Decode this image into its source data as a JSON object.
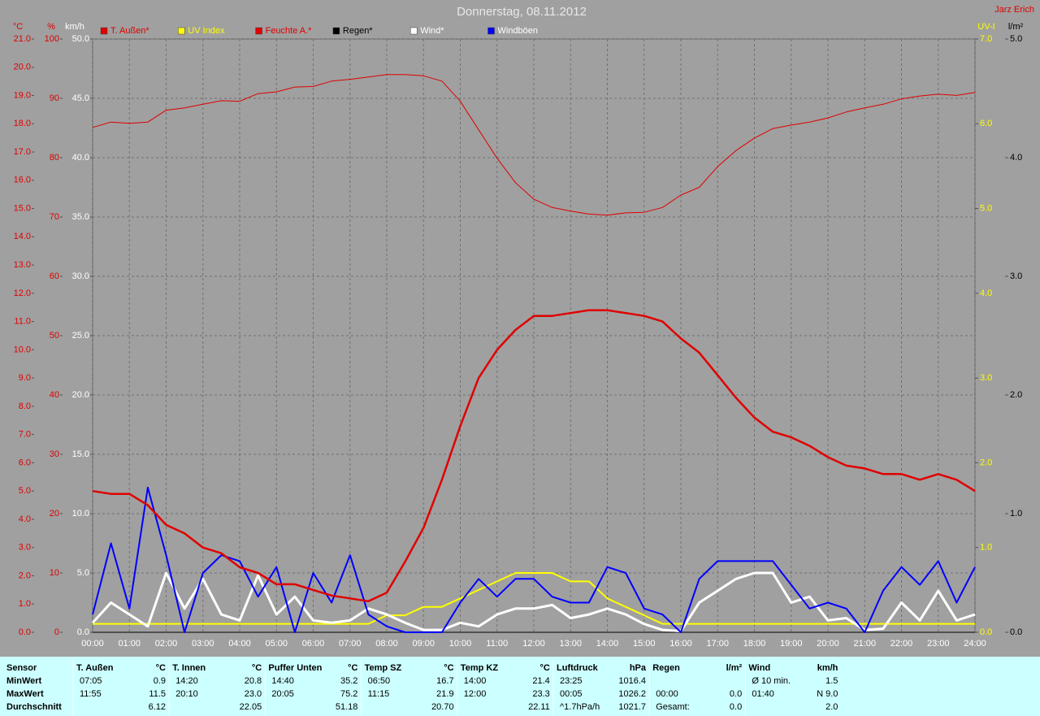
{
  "chart_data": {
    "type": "line",
    "title": "Donnerstag, 08.11.2012",
    "author": "Jarz Erich",
    "x": [
      0,
      0.5,
      1,
      1.5,
      2,
      2.5,
      3,
      3.5,
      4,
      4.5,
      5,
      5.5,
      6,
      6.5,
      7,
      7.5,
      8,
      8.5,
      9,
      9.5,
      10,
      10.5,
      11,
      11.5,
      12,
      12.5,
      13,
      13.5,
      14,
      14.5,
      15,
      15.5,
      16,
      16.5,
      17,
      17.5,
      18,
      18.5,
      19,
      19.5,
      20,
      20.5,
      21,
      21.5,
      22,
      22.5,
      23,
      23.5,
      24
    ],
    "xlim": [
      0,
      24
    ],
    "xticks": [
      {
        "value": 0,
        "label": "00:00"
      },
      {
        "value": 1,
        "label": "01:00"
      },
      {
        "value": 2,
        "label": "02:00"
      },
      {
        "value": 3,
        "label": "03:00"
      },
      {
        "value": 4,
        "label": "04:00"
      },
      {
        "value": 5,
        "label": "05:00"
      },
      {
        "value": 6,
        "label": "06:00"
      },
      {
        "value": 7,
        "label": "07:00"
      },
      {
        "value": 8,
        "label": "08:00"
      },
      {
        "value": 9,
        "label": "09:00"
      },
      {
        "value": 10,
        "label": "10:00"
      },
      {
        "value": 11,
        "label": "11:00"
      },
      {
        "value": 12,
        "label": "12:00"
      },
      {
        "value": 13,
        "label": "13:00"
      },
      {
        "value": 14,
        "label": "14:00"
      },
      {
        "value": 15,
        "label": "15:00"
      },
      {
        "value": 16,
        "label": "16:00"
      },
      {
        "value": 17,
        "label": "17:00"
      },
      {
        "value": 18,
        "label": "18:00"
      },
      {
        "value": 19,
        "label": "19:00"
      },
      {
        "value": 20,
        "label": "20:00"
      },
      {
        "value": 21,
        "label": "21:00"
      },
      {
        "value": 22,
        "label": "22:00"
      },
      {
        "value": 23,
        "label": "23:00"
      },
      {
        "value": 24,
        "label": "24:00"
      }
    ],
    "grid": true,
    "axes": [
      {
        "label": "°C",
        "side": "left",
        "color": "#e00000",
        "lim": [
          0,
          21
        ],
        "ticks": [
          {
            "value": 0,
            "label": "0.0"
          },
          {
            "value": 1,
            "label": "1.0"
          },
          {
            "value": 2,
            "label": "2.0"
          },
          {
            "value": 3,
            "label": "3.0"
          },
          {
            "value": 4,
            "label": "4.0"
          },
          {
            "value": 5,
            "label": "5.0"
          },
          {
            "value": 6,
            "label": "6.0"
          },
          {
            "value": 7,
            "label": "7.0"
          },
          {
            "value": 8,
            "label": "8.0"
          },
          {
            "value": 9,
            "label": "9.0"
          },
          {
            "value": 10,
            "label": "10.0"
          },
          {
            "value": 11,
            "label": "11.0"
          },
          {
            "value": 12,
            "label": "12.0"
          },
          {
            "value": 13,
            "label": "13.0"
          },
          {
            "value": 14,
            "label": "14.0"
          },
          {
            "value": 15,
            "label": "15.0"
          },
          {
            "value": 16,
            "label": "16.0"
          },
          {
            "value": 17,
            "label": "17.0"
          },
          {
            "value": 18,
            "label": "18.0"
          },
          {
            "value": 19,
            "label": "19.0"
          },
          {
            "value": 20,
            "label": "20.0"
          },
          {
            "value": 21,
            "label": "21.0"
          }
        ]
      },
      {
        "label": "%",
        "side": "left",
        "color": "#e00000",
        "lim": [
          0,
          100
        ],
        "ticks": [
          0,
          10,
          20,
          30,
          40,
          50,
          60,
          70,
          80,
          90,
          100
        ]
      },
      {
        "label": "km/h",
        "side": "left",
        "color": "#ffffff",
        "lim": [
          0,
          50
        ],
        "ticks": [
          {
            "value": 0,
            "label": "0.0"
          },
          {
            "value": 5,
            "label": "5.0"
          },
          {
            "value": 10,
            "label": "10.0"
          },
          {
            "value": 15,
            "label": "15.0"
          },
          {
            "value": 20,
            "label": "20.0"
          },
          {
            "value": 25,
            "label": "25.0"
          },
          {
            "value": 30,
            "label": "30.0"
          },
          {
            "value": 35,
            "label": "35.0"
          },
          {
            "value": 40,
            "label": "40.0"
          },
          {
            "value": 45,
            "label": "45.0"
          },
          {
            "value": 50,
            "label": "50.0"
          }
        ]
      },
      {
        "label": "UV-I",
        "side": "right",
        "color": "#ffff00",
        "lim": [
          0,
          7
        ],
        "ticks": [
          {
            "value": 0,
            "label": "0.0"
          },
          {
            "value": 1,
            "label": "1.0"
          },
          {
            "value": 2,
            "label": "2.0"
          },
          {
            "value": 3,
            "label": "3.0"
          },
          {
            "value": 4,
            "label": "4.0"
          },
          {
            "value": 5,
            "label": "5.0"
          },
          {
            "value": 6,
            "label": "6.0"
          },
          {
            "value": 7,
            "label": "7.0"
          }
        ]
      },
      {
        "label": "l/m²",
        "side": "right",
        "color": "#000000",
        "lim": [
          0,
          5
        ],
        "ticks": [
          {
            "value": 0,
            "label": "0.0"
          },
          {
            "value": 1,
            "label": "1.0"
          },
          {
            "value": 2,
            "label": "2.0"
          },
          {
            "value": 3,
            "label": "3.0"
          },
          {
            "value": 4,
            "label": "4.0"
          },
          {
            "value": 5,
            "label": "5.0"
          }
        ]
      }
    ],
    "series": [
      {
        "name": "T. Außen*",
        "color": "#e00000",
        "axis": "°C",
        "values": [
          5.0,
          4.9,
          4.9,
          4.5,
          3.8,
          3.5,
          3.0,
          2.8,
          2.3,
          2.1,
          1.7,
          1.7,
          1.5,
          1.3,
          1.2,
          1.1,
          1.4,
          2.5,
          3.7,
          5.4,
          7.3,
          9.0,
          10.0,
          10.7,
          11.2,
          11.2,
          11.3,
          11.4,
          11.4,
          11.3,
          11.2,
          11.0,
          10.4,
          9.9,
          9.1,
          8.3,
          7.6,
          7.1,
          6.9,
          6.6,
          6.2,
          5.9,
          5.8,
          5.6,
          5.6,
          5.4,
          5.6,
          5.4,
          5.0
        ]
      },
      {
        "name": "UV Index",
        "color": "#ffff00",
        "axis": "UV-I",
        "values": [
          0.1,
          0.1,
          0.1,
          0.1,
          0.1,
          0.1,
          0.1,
          0.1,
          0.1,
          0.1,
          0.1,
          0.1,
          0.1,
          0.1,
          0.1,
          0.1,
          0.2,
          0.2,
          0.3,
          0.3,
          0.4,
          0.5,
          0.6,
          0.7,
          0.7,
          0.7,
          0.6,
          0.6,
          0.4,
          0.3,
          0.2,
          0.1,
          0.1,
          0.1,
          0.1,
          0.1,
          0.1,
          0.1,
          0.1,
          0.1,
          0.1,
          0.1,
          0.1,
          0.1,
          0.1,
          0.1,
          0.1,
          0.1,
          0.1
        ]
      },
      {
        "name": "Feuchte A.*",
        "color": "#e00000",
        "axis": "%",
        "values": [
          85.1,
          86,
          85.8,
          86,
          88,
          88.4,
          89,
          89.6,
          89.5,
          90.8,
          91.1,
          91.9,
          92,
          92.9,
          93.2,
          93.6,
          94,
          94,
          93.8,
          92.9,
          89.5,
          84.7,
          79.9,
          75.8,
          73,
          71.6,
          71,
          70.5,
          70.3,
          70.7,
          70.8,
          71.6,
          73.7,
          75,
          78.5,
          81.2,
          83.3,
          84.9,
          85.5,
          86,
          86.7,
          87.7,
          88.4,
          89,
          89.9,
          90.4,
          90.7,
          90.5,
          91
        ]
      },
      {
        "name": "Regen*",
        "color": "#000000",
        "axis": "l/m²",
        "values": [
          0,
          0,
          0,
          0,
          0,
          0,
          0,
          0,
          0,
          0,
          0,
          0,
          0,
          0,
          0,
          0,
          0,
          0,
          0,
          0,
          0,
          0,
          0,
          0,
          0,
          0,
          0,
          0,
          0,
          0,
          0,
          0,
          0,
          0,
          0,
          0,
          0,
          0,
          0,
          0,
          0,
          0,
          0,
          0,
          0,
          0,
          0,
          0,
          0
        ]
      },
      {
        "name": "Wind*",
        "color": "#ffffff",
        "axis": "km/h",
        "values": [
          0.8,
          2.5,
          1.5,
          0.5,
          5.0,
          2.0,
          4.5,
          1.5,
          1.0,
          4.8,
          1.5,
          3.0,
          1.0,
          0.8,
          1.0,
          2.0,
          1.5,
          0.8,
          0.2,
          0.2,
          0.8,
          0.5,
          1.5,
          2.0,
          2.0,
          2.3,
          1.2,
          1.5,
          2.0,
          1.5,
          0.7,
          0.2,
          0.1,
          2.5,
          3.5,
          4.5,
          5.0,
          5.0,
          2.5,
          3.0,
          1.0,
          1.2,
          0.2,
          0.3,
          2.5,
          1.0,
          3.5,
          1.0,
          1.5
        ]
      },
      {
        "name": "Windböen",
        "color": "#0000ff",
        "axis": "km/h",
        "values": [
          1.5,
          7.5,
          2.0,
          12.2,
          6.5,
          0,
          5.0,
          6.5,
          6.0,
          3.0,
          5.5,
          0,
          5.0,
          2.5,
          6.5,
          1.5,
          0.5,
          0,
          0,
          0,
          2.5,
          4.5,
          3.0,
          4.5,
          4.5,
          3.0,
          2.5,
          2.5,
          5.5,
          5.0,
          2.0,
          1.5,
          0,
          4.5,
          6.0,
          6.0,
          6.0,
          6.0,
          4.0,
          2.0,
          2.5,
          2.0,
          0,
          3.5,
          5.5,
          4.0,
          6.0,
          2.5,
          5.5
        ]
      }
    ]
  },
  "stats": {
    "row_labels": [
      "Sensor",
      "MinWert",
      "MaxWert",
      "Durchschnitt"
    ],
    "columns": [
      {
        "title": "T. Außen",
        "unit": "°C",
        "rows": [
          [
            "07:05",
            "0.9"
          ],
          [
            "11:55",
            "11.5"
          ],
          [
            null,
            "6.12"
          ]
        ]
      },
      {
        "title": "T. Innen",
        "unit": "°C",
        "rows": [
          [
            "14:20",
            "20.8"
          ],
          [
            "20:10",
            "23.0"
          ],
          [
            null,
            "22.05"
          ]
        ]
      },
      {
        "title": "Puffer Unten",
        "unit": "°C",
        "rows": [
          [
            "14:40",
            "35.2"
          ],
          [
            "20:05",
            "75.2"
          ],
          [
            null,
            "51.18"
          ]
        ]
      },
      {
        "title": "Temp SZ",
        "unit": "°C",
        "rows": [
          [
            "06:50",
            "16.7"
          ],
          [
            "11:15",
            "21.9"
          ],
          [
            null,
            "20.70"
          ]
        ]
      },
      {
        "title": "Temp KZ",
        "unit": "°C",
        "rows": [
          [
            "14:00",
            "21.4"
          ],
          [
            "12:00",
            "23.3"
          ],
          [
            null,
            "22.11"
          ]
        ]
      },
      {
        "title": "Luftdruck",
        "unit": "hPa",
        "rows": [
          [
            "23:25",
            "1016.4"
          ],
          [
            "00:05",
            "1026.2"
          ],
          [
            "^1.7hPa/h",
            "1021.7"
          ]
        ]
      },
      {
        "title": "Regen",
        "unit": "l/m²",
        "rows": [
          [
            null,
            null
          ],
          [
            "00:00",
            "0.0"
          ],
          [
            "Gesamt:",
            "0.0"
          ]
        ]
      },
      {
        "title": "Wind",
        "unit": "km/h",
        "rows": [
          [
            "Ø 10 min.",
            "1.5"
          ],
          [
            "01:40",
            "N 9.0"
          ],
          [
            null,
            "2.0"
          ]
        ]
      }
    ]
  }
}
